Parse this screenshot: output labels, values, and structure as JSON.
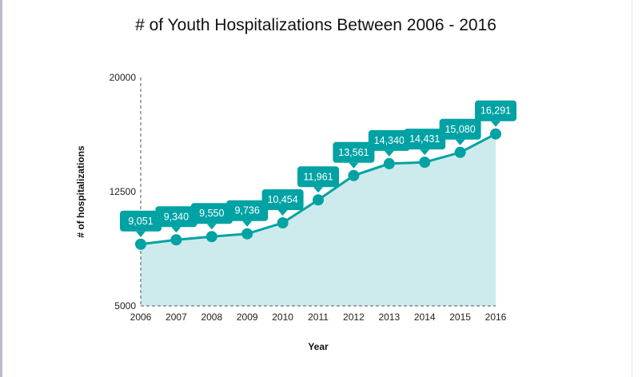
{
  "chart_data": {
    "type": "area",
    "title": "# of Youth Hospitalizations Between 2006 - 2016",
    "xlabel": "Year",
    "ylabel": "# of hospitalizations",
    "categories": [
      "2006",
      "2007",
      "2008",
      "2009",
      "2010",
      "2011",
      "2012",
      "2013",
      "2014",
      "2015",
      "2016"
    ],
    "values": [
      9051,
      9340,
      9550,
      9736,
      10454,
      11961,
      13561,
      14340,
      14431,
      15080,
      16291
    ],
    "data_labels": [
      "9,051",
      "9,340",
      "9,550",
      "9,736",
      "10,454",
      "11,961",
      "13,561",
      "14,340",
      "14,431",
      "15,080",
      "16,291"
    ],
    "ylim": [
      5000,
      20000
    ],
    "yticks": [
      "5000",
      "12500",
      "20000"
    ],
    "ytick_values": [
      5000,
      12500,
      20000
    ],
    "grid": false,
    "colors": {
      "line": "#00a2a4",
      "fill": "#cdebec",
      "label_bg": "#00a2a4"
    }
  }
}
